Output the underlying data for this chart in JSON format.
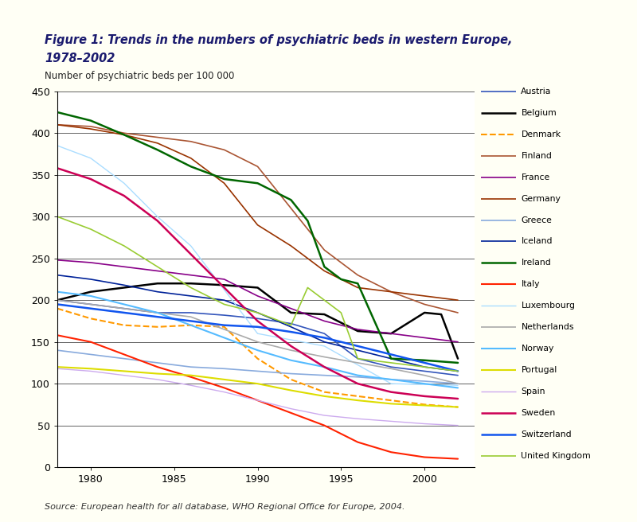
{
  "title_line1": "Figure 1: Trends in the numbers of psychiatric beds in western Europe,",
  "title_line2": "1978–2002",
  "ylabel": "Number of psychiatric beds per 100 000",
  "source": "Source: European health for all database, WHO Regional Office for Europe, 2004.",
  "bg_color": "#fffff5",
  "plot_bg": "#ffffff",
  "ylim": [
    0,
    450
  ],
  "xlim": [
    1978,
    2003
  ],
  "yticks": [
    0,
    50,
    100,
    150,
    200,
    250,
    300,
    350,
    400,
    450
  ],
  "xticks": [
    1980,
    1985,
    1990,
    1995,
    2000
  ],
  "countries": {
    "Austria": {
      "color": "#3355bb",
      "linestyle": "-",
      "linewidth": 1.2,
      "data": [
        [
          1978,
          200
        ],
        [
          1980,
          195
        ],
        [
          1982,
          190
        ],
        [
          1984,
          185
        ],
        [
          1986,
          185
        ],
        [
          1988,
          182
        ],
        [
          1990,
          178
        ],
        [
          1992,
          172
        ],
        [
          1994,
          160
        ],
        [
          1996,
          130
        ],
        [
          1998,
          120
        ],
        [
          2000,
          115
        ],
        [
          2002,
          110
        ]
      ]
    },
    "Belgium": {
      "color": "#000000",
      "linestyle": "-",
      "linewidth": 1.8,
      "data": [
        [
          1978,
          200
        ],
        [
          1980,
          210
        ],
        [
          1982,
          215
        ],
        [
          1984,
          220
        ],
        [
          1986,
          220
        ],
        [
          1988,
          218
        ],
        [
          1990,
          215
        ],
        [
          1992,
          185
        ],
        [
          1994,
          183
        ],
        [
          1996,
          163
        ],
        [
          1998,
          160
        ],
        [
          2000,
          185
        ],
        [
          2001,
          183
        ],
        [
          2002,
          130
        ]
      ]
    },
    "Denmark": {
      "color": "#ff9900",
      "linestyle": "--",
      "linewidth": 1.5,
      "data": [
        [
          1978,
          190
        ],
        [
          1980,
          178
        ],
        [
          1982,
          170
        ],
        [
          1984,
          168
        ],
        [
          1986,
          170
        ],
        [
          1988,
          168
        ],
        [
          1990,
          130
        ],
        [
          1992,
          105
        ],
        [
          1994,
          90
        ],
        [
          1996,
          85
        ],
        [
          1998,
          80
        ],
        [
          2000,
          75
        ],
        [
          2002,
          72
        ]
      ]
    },
    "Finland": {
      "color": "#aa5533",
      "linestyle": "-",
      "linewidth": 1.2,
      "data": [
        [
          1978,
          410
        ],
        [
          1980,
          408
        ],
        [
          1982,
          400
        ],
        [
          1984,
          395
        ],
        [
          1986,
          390
        ],
        [
          1988,
          380
        ],
        [
          1990,
          360
        ],
        [
          1992,
          310
        ],
        [
          1994,
          260
        ],
        [
          1996,
          230
        ],
        [
          1998,
          210
        ],
        [
          2000,
          195
        ],
        [
          2002,
          185
        ]
      ]
    },
    "France": {
      "color": "#880088",
      "linestyle": "-",
      "linewidth": 1.2,
      "data": [
        [
          1978,
          248
        ],
        [
          1980,
          245
        ],
        [
          1982,
          240
        ],
        [
          1984,
          235
        ],
        [
          1986,
          230
        ],
        [
          1988,
          225
        ],
        [
          1990,
          205
        ],
        [
          1992,
          190
        ],
        [
          1994,
          175
        ],
        [
          1996,
          165
        ],
        [
          1998,
          160
        ],
        [
          2000,
          155
        ],
        [
          2002,
          150
        ]
      ]
    },
    "Germany": {
      "color": "#993300",
      "linestyle": "-",
      "linewidth": 1.2,
      "data": [
        [
          1978,
          410
        ],
        [
          1980,
          405
        ],
        [
          1982,
          398
        ],
        [
          1984,
          388
        ],
        [
          1986,
          370
        ],
        [
          1988,
          340
        ],
        [
          1990,
          290
        ],
        [
          1992,
          265
        ],
        [
          1994,
          235
        ],
        [
          1996,
          215
        ],
        [
          1998,
          210
        ],
        [
          2000,
          205
        ],
        [
          2002,
          200
        ]
      ]
    },
    "Greece": {
      "color": "#88aadd",
      "linestyle": "-",
      "linewidth": 1.2,
      "data": [
        [
          1978,
          140
        ],
        [
          1980,
          135
        ],
        [
          1982,
          130
        ],
        [
          1984,
          125
        ],
        [
          1986,
          120
        ],
        [
          1988,
          118
        ],
        [
          1990,
          115
        ],
        [
          1992,
          112
        ],
        [
          1994,
          110
        ],
        [
          1996,
          108
        ],
        [
          1998,
          105
        ],
        [
          2000,
          103
        ],
        [
          2002,
          100
        ]
      ]
    },
    "Iceland": {
      "color": "#002299",
      "linestyle": "-",
      "linewidth": 1.2,
      "data": [
        [
          1978,
          230
        ],
        [
          1980,
          225
        ],
        [
          1982,
          218
        ],
        [
          1984,
          210
        ],
        [
          1986,
          205
        ],
        [
          1988,
          200
        ],
        [
          1990,
          185
        ],
        [
          1992,
          168
        ],
        [
          1994,
          150
        ],
        [
          1996,
          140
        ],
        [
          1998,
          130
        ],
        [
          2000,
          120
        ],
        [
          2002,
          115
        ]
      ]
    },
    "Ireland": {
      "color": "#006600",
      "linestyle": "-",
      "linewidth": 1.8,
      "data": [
        [
          1978,
          425
        ],
        [
          1980,
          415
        ],
        [
          1982,
          398
        ],
        [
          1984,
          380
        ],
        [
          1986,
          360
        ],
        [
          1988,
          345
        ],
        [
          1990,
          340
        ],
        [
          1992,
          320
        ],
        [
          1993,
          295
        ],
        [
          1994,
          240
        ],
        [
          1995,
          225
        ],
        [
          1996,
          220
        ],
        [
          1998,
          130
        ],
        [
          2000,
          128
        ],
        [
          2002,
          125
        ]
      ]
    },
    "Italy": {
      "color": "#ff2200",
      "linestyle": "-",
      "linewidth": 1.5,
      "data": [
        [
          1978,
          158
        ],
        [
          1980,
          150
        ],
        [
          1982,
          135
        ],
        [
          1984,
          120
        ],
        [
          1986,
          108
        ],
        [
          1988,
          95
        ],
        [
          1990,
          80
        ],
        [
          1992,
          65
        ],
        [
          1994,
          50
        ],
        [
          1996,
          30
        ],
        [
          1998,
          18
        ],
        [
          2000,
          12
        ],
        [
          2002,
          10
        ]
      ]
    },
    "Luxembourg": {
      "color": "#aaddff",
      "linestyle": "-",
      "linewidth": 1.0,
      "data": [
        [
          1978,
          385
        ],
        [
          1980,
          370
        ],
        [
          1982,
          340
        ],
        [
          1984,
          300
        ],
        [
          1986,
          265
        ],
        [
          1990,
          160
        ],
        [
          1994,
          145
        ],
        [
          1998,
          100
        ],
        [
          2002,
          98
        ]
      ]
    },
    "Netherlands": {
      "color": "#aaaaaa",
      "linestyle": "-",
      "linewidth": 1.2,
      "data": [
        [
          1978,
          200
        ],
        [
          1980,
          195
        ],
        [
          1982,
          190
        ],
        [
          1984,
          185
        ],
        [
          1986,
          180
        ],
        [
          1988,
          165
        ],
        [
          1990,
          150
        ],
        [
          1992,
          140
        ],
        [
          1994,
          132
        ],
        [
          1996,
          125
        ],
        [
          1998,
          118
        ],
        [
          2000,
          110
        ],
        [
          2002,
          100
        ]
      ]
    },
    "Norway": {
      "color": "#55bbff",
      "linestyle": "-",
      "linewidth": 1.5,
      "data": [
        [
          1978,
          210
        ],
        [
          1980,
          205
        ],
        [
          1982,
          195
        ],
        [
          1984,
          185
        ],
        [
          1986,
          170
        ],
        [
          1988,
          155
        ],
        [
          1990,
          140
        ],
        [
          1992,
          128
        ],
        [
          1994,
          120
        ],
        [
          1996,
          110
        ],
        [
          1998,
          105
        ],
        [
          2000,
          100
        ],
        [
          2002,
          95
        ]
      ]
    },
    "Portugal": {
      "color": "#dddd00",
      "linestyle": "-",
      "linewidth": 1.5,
      "data": [
        [
          1978,
          120
        ],
        [
          1980,
          118
        ],
        [
          1982,
          115
        ],
        [
          1984,
          112
        ],
        [
          1986,
          110
        ],
        [
          1988,
          105
        ],
        [
          1990,
          100
        ],
        [
          1992,
          92
        ],
        [
          1994,
          85
        ],
        [
          1996,
          80
        ],
        [
          1998,
          76
        ],
        [
          2000,
          74
        ],
        [
          2002,
          72
        ]
      ]
    },
    "Spain": {
      "color": "#ccaaee",
      "linestyle": "-",
      "linewidth": 1.0,
      "data": [
        [
          1978,
          118
        ],
        [
          1980,
          115
        ],
        [
          1982,
          110
        ],
        [
          1984,
          105
        ],
        [
          1986,
          98
        ],
        [
          1988,
          90
        ],
        [
          1990,
          80
        ],
        [
          1992,
          70
        ],
        [
          1994,
          62
        ],
        [
          1996,
          58
        ],
        [
          1998,
          55
        ],
        [
          2000,
          52
        ],
        [
          2002,
          50
        ]
      ]
    },
    "Sweden": {
      "color": "#cc0055",
      "linestyle": "-",
      "linewidth": 1.8,
      "data": [
        [
          1978,
          358
        ],
        [
          1980,
          345
        ],
        [
          1982,
          325
        ],
        [
          1984,
          295
        ],
        [
          1986,
          255
        ],
        [
          1988,
          215
        ],
        [
          1990,
          175
        ],
        [
          1992,
          145
        ],
        [
          1994,
          120
        ],
        [
          1996,
          100
        ],
        [
          1998,
          90
        ],
        [
          2000,
          85
        ],
        [
          2002,
          82
        ]
      ]
    },
    "Switzerland": {
      "color": "#1155ee",
      "linestyle": "-",
      "linewidth": 1.8,
      "data": [
        [
          1978,
          195
        ],
        [
          1980,
          190
        ],
        [
          1982,
          185
        ],
        [
          1984,
          180
        ],
        [
          1986,
          175
        ],
        [
          1988,
          170
        ],
        [
          1990,
          168
        ],
        [
          1992,
          162
        ],
        [
          1994,
          155
        ],
        [
          1996,
          145
        ],
        [
          1998,
          135
        ],
        [
          2000,
          125
        ],
        [
          2002,
          115
        ]
      ]
    },
    "United Kingdom": {
      "color": "#99cc33",
      "linestyle": "-",
      "linewidth": 1.2,
      "data": [
        [
          1978,
          300
        ],
        [
          1980,
          285
        ],
        [
          1982,
          265
        ],
        [
          1984,
          240
        ],
        [
          1986,
          215
        ],
        [
          1988,
          195
        ],
        [
          1990,
          185
        ],
        [
          1992,
          170
        ],
        [
          1993,
          215
        ],
        [
          1994,
          200
        ],
        [
          1995,
          185
        ],
        [
          1996,
          130
        ],
        [
          1998,
          125
        ],
        [
          2000,
          120
        ],
        [
          2002,
          115
        ]
      ]
    }
  }
}
